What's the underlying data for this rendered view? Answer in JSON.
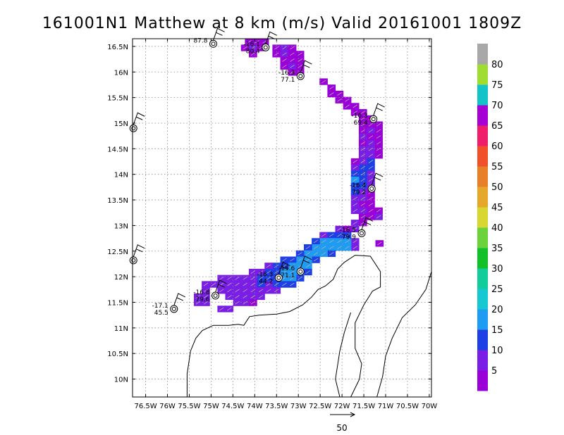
{
  "chart_data": {
    "type": "heatmap",
    "title": "161001N1 Matthew at 8 km (m/s) Valid 20161001  1809Z",
    "xlim": [
      -76.8,
      -69.95
    ],
    "ylim": [
      9.65,
      16.65
    ],
    "x_ticks": [
      "76.5W",
      "76W",
      "75.5W",
      "75W",
      "74.5W",
      "74W",
      "73.5W",
      "73W",
      "72.5W",
      "72W",
      "71.5W",
      "71W",
      "70.5W",
      "70W"
    ],
    "y_ticks": [
      "16.5N",
      "16N",
      "15.5N",
      "15N",
      "14.5N",
      "14N",
      "13.5N",
      "13N",
      "12.5N",
      "12N",
      "11.5N",
      "11N",
      "10.5N",
      "10N"
    ],
    "grid": true,
    "colorbar": {
      "placement": "right",
      "levels": [
        "5",
        "10",
        "15",
        "20",
        "25",
        "30",
        "35",
        "40",
        "45",
        "50",
        "55",
        "60",
        "65",
        "70",
        "75",
        "80"
      ],
      "colors": [
        "#9a00d8",
        "#7a1ee6",
        "#1f3fe6",
        "#1e9cf2",
        "#16c8d2",
        "#12cc9a",
        "#12c02a",
        "#6cd23c",
        "#d8d630",
        "#e6a82a",
        "#e8802a",
        "#f0502a",
        "#f01e6a",
        "#a500d4",
        "#12c3c8",
        "#a0dc32",
        "#a8a8a8"
      ]
    },
    "reference_vector": {
      "label": "50"
    },
    "stations": [
      {
        "lon": -74.95,
        "lat": 16.55,
        "labels": [
          "87.8"
        ]
      },
      {
        "lon": -73.75,
        "lat": 16.48,
        "labels": [
          "-16.1",
          "80.4"
        ]
      },
      {
        "lon": -72.95,
        "lat": 15.92,
        "labels": [
          "-16.3",
          "77.1"
        ]
      },
      {
        "lon": -71.28,
        "lat": 15.08,
        "labels": [
          "-16.3",
          "69.4"
        ]
      },
      {
        "lon": -71.32,
        "lat": 13.72,
        "labels": [
          "-16.4",
          "79.2"
        ]
      },
      {
        "lon": -71.55,
        "lat": 12.85,
        "labels": [
          "-16.5",
          "79.9"
        ]
      },
      {
        "lon": -72.95,
        "lat": 12.1,
        "labels": [
          "-15.6",
          "71.1"
        ]
      },
      {
        "lon": -73.45,
        "lat": 11.98,
        "labels": [
          "-16.3",
          "44.2"
        ]
      },
      {
        "lon": -74.9,
        "lat": 11.63,
        "labels": [
          "-16.8",
          "79.6"
        ]
      },
      {
        "lon": -75.85,
        "lat": 11.37,
        "labels": [
          "-17.1",
          "45.5"
        ]
      },
      {
        "lon": -76.78,
        "lat": 14.9,
        "labels": []
      },
      {
        "lon": -76.78,
        "lat": 12.32,
        "labels": []
      }
    ],
    "wind_field": [
      {
        "lon": -74.13,
        "lat": 16.59,
        "bin": 0
      },
      {
        "lon": -73.95,
        "lat": 16.59,
        "bin": 0
      },
      {
        "lon": -73.77,
        "lat": 16.59,
        "bin": 0
      },
      {
        "lon": -74.22,
        "lat": 16.47,
        "bin": 0
      },
      {
        "lon": -74.04,
        "lat": 16.47,
        "bin": 1
      },
      {
        "lon": -73.86,
        "lat": 16.47,
        "bin": 0
      },
      {
        "lon": -73.5,
        "lat": 16.47,
        "bin": 0
      },
      {
        "lon": -73.32,
        "lat": 16.47,
        "bin": 1
      },
      {
        "lon": -73.14,
        "lat": 16.47,
        "bin": 0
      },
      {
        "lon": -74.04,
        "lat": 16.35,
        "bin": 0
      },
      {
        "lon": -73.5,
        "lat": 16.35,
        "bin": 0
      },
      {
        "lon": -73.32,
        "lat": 16.35,
        "bin": 1
      },
      {
        "lon": -73.14,
        "lat": 16.35,
        "bin": 0
      },
      {
        "lon": -72.96,
        "lat": 16.35,
        "bin": 0
      },
      {
        "lon": -73.32,
        "lat": 16.23,
        "bin": 0
      },
      {
        "lon": -73.14,
        "lat": 16.23,
        "bin": 0
      },
      {
        "lon": -72.96,
        "lat": 16.23,
        "bin": 0
      },
      {
        "lon": -73.32,
        "lat": 16.11,
        "bin": 0
      },
      {
        "lon": -73.14,
        "lat": 16.11,
        "bin": 1
      },
      {
        "lon": -72.96,
        "lat": 16.11,
        "bin": 0
      },
      {
        "lon": -73.14,
        "lat": 15.99,
        "bin": 0
      },
      {
        "lon": -72.96,
        "lat": 15.99,
        "bin": 0
      },
      {
        "lon": -72.42,
        "lat": 15.81,
        "bin": 0
      },
      {
        "lon": -72.24,
        "lat": 15.69,
        "bin": 0
      },
      {
        "lon": -72.06,
        "lat": 15.57,
        "bin": 0
      },
      {
        "lon": -72.24,
        "lat": 15.57,
        "bin": 0
      },
      {
        "lon": -71.88,
        "lat": 15.45,
        "bin": 0
      },
      {
        "lon": -72.06,
        "lat": 15.45,
        "bin": 0
      },
      {
        "lon": -71.7,
        "lat": 15.33,
        "bin": 0
      },
      {
        "lon": -71.88,
        "lat": 15.33,
        "bin": 0
      },
      {
        "lon": -71.52,
        "lat": 15.21,
        "bin": 0
      },
      {
        "lon": -71.7,
        "lat": 15.21,
        "bin": 0
      },
      {
        "lon": -71.34,
        "lat": 15.09,
        "bin": 0
      },
      {
        "lon": -71.52,
        "lat": 15.09,
        "bin": 0
      },
      {
        "lon": -71.34,
        "lat": 14.97,
        "bin": 0
      },
      {
        "lon": -71.16,
        "lat": 14.97,
        "bin": 0
      },
      {
        "lon": -71.52,
        "lat": 14.97,
        "bin": 0
      },
      {
        "lon": -71.16,
        "lat": 14.85,
        "bin": 0
      },
      {
        "lon": -71.34,
        "lat": 14.85,
        "bin": 1
      },
      {
        "lon": -71.52,
        "lat": 14.85,
        "bin": 0
      },
      {
        "lon": -71.16,
        "lat": 14.73,
        "bin": 0
      },
      {
        "lon": -71.34,
        "lat": 14.73,
        "bin": 0
      },
      {
        "lon": -71.52,
        "lat": 14.73,
        "bin": 1
      },
      {
        "lon": -71.16,
        "lat": 14.61,
        "bin": 0
      },
      {
        "lon": -71.34,
        "lat": 14.61,
        "bin": 1
      },
      {
        "lon": -71.52,
        "lat": 14.61,
        "bin": 0
      },
      {
        "lon": -71.16,
        "lat": 14.49,
        "bin": 0
      },
      {
        "lon": -71.34,
        "lat": 14.49,
        "bin": 1
      },
      {
        "lon": -71.52,
        "lat": 14.49,
        "bin": 1
      },
      {
        "lon": -71.16,
        "lat": 14.37,
        "bin": 0
      },
      {
        "lon": -71.34,
        "lat": 14.37,
        "bin": 1
      },
      {
        "lon": -71.52,
        "lat": 14.37,
        "bin": 1
      },
      {
        "lon": -71.34,
        "lat": 14.25,
        "bin": 2
      },
      {
        "lon": -71.52,
        "lat": 14.25,
        "bin": 1
      },
      {
        "lon": -71.7,
        "lat": 14.25,
        "bin": 0
      },
      {
        "lon": -71.34,
        "lat": 14.13,
        "bin": 2
      },
      {
        "lon": -71.52,
        "lat": 14.13,
        "bin": 2
      },
      {
        "lon": -71.7,
        "lat": 14.13,
        "bin": 1
      },
      {
        "lon": -71.34,
        "lat": 14.01,
        "bin": 1
      },
      {
        "lon": -71.52,
        "lat": 14.01,
        "bin": 2
      },
      {
        "lon": -71.7,
        "lat": 14.01,
        "bin": 2
      },
      {
        "lon": -71.34,
        "lat": 13.89,
        "bin": 1
      },
      {
        "lon": -71.52,
        "lat": 13.89,
        "bin": 2
      },
      {
        "lon": -71.7,
        "lat": 13.89,
        "bin": 3
      },
      {
        "lon": -71.34,
        "lat": 13.77,
        "bin": 1
      },
      {
        "lon": -71.52,
        "lat": 13.77,
        "bin": 2
      },
      {
        "lon": -71.7,
        "lat": 13.77,
        "bin": 2
      },
      {
        "lon": -71.34,
        "lat": 13.65,
        "bin": 0
      },
      {
        "lon": -71.52,
        "lat": 13.65,
        "bin": 1
      },
      {
        "lon": -71.7,
        "lat": 13.65,
        "bin": 2
      },
      {
        "lon": -71.34,
        "lat": 13.53,
        "bin": 0
      },
      {
        "lon": -71.52,
        "lat": 13.53,
        "bin": 1
      },
      {
        "lon": -71.7,
        "lat": 13.53,
        "bin": 1
      },
      {
        "lon": -71.34,
        "lat": 13.41,
        "bin": 0
      },
      {
        "lon": -71.52,
        "lat": 13.41,
        "bin": 0
      },
      {
        "lon": -71.7,
        "lat": 13.41,
        "bin": 1
      },
      {
        "lon": -71.16,
        "lat": 13.29,
        "bin": 0
      },
      {
        "lon": -71.34,
        "lat": 13.29,
        "bin": 0
      },
      {
        "lon": -71.52,
        "lat": 13.29,
        "bin": 1
      },
      {
        "lon": -71.7,
        "lat": 13.29,
        "bin": 1
      },
      {
        "lon": -71.16,
        "lat": 13.17,
        "bin": 1
      },
      {
        "lon": -71.34,
        "lat": 13.17,
        "bin": 0
      },
      {
        "lon": -71.52,
        "lat": 13.17,
        "bin": 0
      },
      {
        "lon": -71.52,
        "lat": 13.05,
        "bin": 0
      },
      {
        "lon": -71.7,
        "lat": 13.05,
        "bin": 1
      },
      {
        "lon": -71.7,
        "lat": 12.93,
        "bin": 1
      },
      {
        "lon": -71.88,
        "lat": 12.93,
        "bin": 0
      },
      {
        "lon": -72.06,
        "lat": 12.93,
        "bin": 1
      },
      {
        "lon": -71.88,
        "lat": 12.81,
        "bin": 2
      },
      {
        "lon": -72.06,
        "lat": 12.81,
        "bin": 2
      },
      {
        "lon": -72.24,
        "lat": 12.81,
        "bin": 2
      },
      {
        "lon": -72.42,
        "lat": 12.81,
        "bin": 1
      },
      {
        "lon": -71.7,
        "lat": 12.69,
        "bin": 1
      },
      {
        "lon": -71.88,
        "lat": 12.69,
        "bin": 3
      },
      {
        "lon": -72.06,
        "lat": 12.69,
        "bin": 3
      },
      {
        "lon": -72.24,
        "lat": 12.69,
        "bin": 3
      },
      {
        "lon": -72.42,
        "lat": 12.69,
        "bin": 3
      },
      {
        "lon": -72.6,
        "lat": 12.69,
        "bin": 2
      },
      {
        "lon": -71.7,
        "lat": 12.57,
        "bin": 1
      },
      {
        "lon": -71.88,
        "lat": 12.57,
        "bin": 3
      },
      {
        "lon": -72.06,
        "lat": 12.57,
        "bin": 3
      },
      {
        "lon": -72.24,
        "lat": 12.57,
        "bin": 3
      },
      {
        "lon": -72.42,
        "lat": 12.57,
        "bin": 3
      },
      {
        "lon": -72.6,
        "lat": 12.57,
        "bin": 3
      },
      {
        "lon": -72.78,
        "lat": 12.57,
        "bin": 2
      },
      {
        "lon": -71.14,
        "lat": 12.65,
        "bin": 0
      },
      {
        "lon": -72.24,
        "lat": 12.45,
        "bin": 2
      },
      {
        "lon": -72.42,
        "lat": 12.45,
        "bin": 3
      },
      {
        "lon": -72.6,
        "lat": 12.45,
        "bin": 3
      },
      {
        "lon": -72.78,
        "lat": 12.45,
        "bin": 3
      },
      {
        "lon": -72.96,
        "lat": 12.45,
        "bin": 2
      },
      {
        "lon": -72.6,
        "lat": 12.33,
        "bin": 2
      },
      {
        "lon": -72.78,
        "lat": 12.33,
        "bin": 3
      },
      {
        "lon": -72.96,
        "lat": 12.33,
        "bin": 3
      },
      {
        "lon": -73.14,
        "lat": 12.33,
        "bin": 2
      },
      {
        "lon": -73.32,
        "lat": 12.33,
        "bin": 2
      },
      {
        "lon": -72.78,
        "lat": 12.21,
        "bin": 3
      },
      {
        "lon": -72.96,
        "lat": 12.21,
        "bin": 3
      },
      {
        "lon": -73.14,
        "lat": 12.21,
        "bin": 3
      },
      {
        "lon": -73.32,
        "lat": 12.21,
        "bin": 2
      },
      {
        "lon": -73.5,
        "lat": 12.21,
        "bin": 2
      },
      {
        "lon": -73.68,
        "lat": 12.21,
        "bin": 1
      },
      {
        "lon": -72.78,
        "lat": 12.09,
        "bin": 2
      },
      {
        "lon": -72.96,
        "lat": 12.09,
        "bin": 3
      },
      {
        "lon": -73.14,
        "lat": 12.09,
        "bin": 3
      },
      {
        "lon": -73.32,
        "lat": 12.09,
        "bin": 3
      },
      {
        "lon": -73.5,
        "lat": 12.09,
        "bin": 2
      },
      {
        "lon": -73.68,
        "lat": 12.09,
        "bin": 2
      },
      {
        "lon": -73.86,
        "lat": 12.09,
        "bin": 1
      },
      {
        "lon": -74.04,
        "lat": 12.09,
        "bin": 1
      },
      {
        "lon": -72.96,
        "lat": 11.97,
        "bin": 2
      },
      {
        "lon": -73.14,
        "lat": 11.97,
        "bin": 3
      },
      {
        "lon": -73.32,
        "lat": 11.97,
        "bin": 3
      },
      {
        "lon": -73.5,
        "lat": 11.97,
        "bin": 2
      },
      {
        "lon": -73.68,
        "lat": 11.97,
        "bin": 2
      },
      {
        "lon": -73.86,
        "lat": 11.97,
        "bin": 2
      },
      {
        "lon": -74.04,
        "lat": 11.97,
        "bin": 1
      },
      {
        "lon": -74.22,
        "lat": 11.97,
        "bin": 1
      },
      {
        "lon": -74.4,
        "lat": 11.97,
        "bin": 1
      },
      {
        "lon": -74.58,
        "lat": 11.97,
        "bin": 1
      },
      {
        "lon": -74.76,
        "lat": 11.97,
        "bin": 1
      },
      {
        "lon": -73.14,
        "lat": 11.85,
        "bin": 2
      },
      {
        "lon": -73.32,
        "lat": 11.85,
        "bin": 2
      },
      {
        "lon": -73.5,
        "lat": 11.85,
        "bin": 2
      },
      {
        "lon": -73.68,
        "lat": 11.85,
        "bin": 1
      },
      {
        "lon": -73.86,
        "lat": 11.85,
        "bin": 2
      },
      {
        "lon": -74.04,
        "lat": 11.85,
        "bin": 1
      },
      {
        "lon": -74.22,
        "lat": 11.85,
        "bin": 1
      },
      {
        "lon": -74.4,
        "lat": 11.85,
        "bin": 1
      },
      {
        "lon": -74.58,
        "lat": 11.85,
        "bin": 1
      },
      {
        "lon": -74.76,
        "lat": 11.85,
        "bin": 1
      },
      {
        "lon": -74.94,
        "lat": 11.85,
        "bin": 1
      },
      {
        "lon": -75.12,
        "lat": 11.85,
        "bin": 1
      },
      {
        "lon": -73.5,
        "lat": 11.73,
        "bin": 1
      },
      {
        "lon": -73.68,
        "lat": 11.73,
        "bin": 1
      },
      {
        "lon": -73.86,
        "lat": 11.73,
        "bin": 1
      },
      {
        "lon": -74.04,
        "lat": 11.73,
        "bin": 1
      },
      {
        "lon": -74.22,
        "lat": 11.73,
        "bin": 1
      },
      {
        "lon": -74.4,
        "lat": 11.73,
        "bin": 1
      },
      {
        "lon": -74.58,
        "lat": 11.73,
        "bin": 1
      },
      {
        "lon": -74.76,
        "lat": 11.73,
        "bin": 1
      },
      {
        "lon": -75.12,
        "lat": 11.73,
        "bin": 1
      },
      {
        "lon": -73.86,
        "lat": 11.61,
        "bin": 1
      },
      {
        "lon": -74.04,
        "lat": 11.61,
        "bin": 1
      },
      {
        "lon": -74.22,
        "lat": 11.61,
        "bin": 1
      },
      {
        "lon": -74.4,
        "lat": 11.61,
        "bin": 1
      },
      {
        "lon": -74.58,
        "lat": 11.61,
        "bin": 1
      },
      {
        "lon": -75.12,
        "lat": 11.61,
        "bin": 1
      },
      {
        "lon": -75.3,
        "lat": 11.61,
        "bin": 1
      },
      {
        "lon": -74.04,
        "lat": 11.49,
        "bin": 0
      },
      {
        "lon": -74.22,
        "lat": 11.49,
        "bin": 1
      },
      {
        "lon": -74.4,
        "lat": 11.49,
        "bin": 1
      },
      {
        "lon": -75.12,
        "lat": 11.49,
        "bin": 1
      },
      {
        "lon": -75.3,
        "lat": 11.49,
        "bin": 1
      },
      {
        "lon": -74.58,
        "lat": 11.37,
        "bin": 1
      },
      {
        "lon": -74.76,
        "lat": 11.37,
        "bin": 1
      }
    ],
    "coastline": [
      [
        [
          -75.55,
          9.65
        ],
        [
          -75.55,
          10.1
        ],
        [
          -75.47,
          10.55
        ],
        [
          -75.35,
          10.8
        ],
        [
          -75.2,
          10.95
        ],
        [
          -74.95,
          11.05
        ],
        [
          -74.6,
          11.05
        ],
        [
          -74.38,
          11.07
        ],
        [
          -74.25,
          11.05
        ],
        [
          -74.12,
          11.22
        ],
        [
          -73.9,
          11.25
        ],
        [
          -73.5,
          11.27
        ],
        [
          -73.2,
          11.32
        ],
        [
          -72.9,
          11.45
        ],
        [
          -72.7,
          11.6
        ],
        [
          -72.55,
          11.75
        ],
        [
          -72.38,
          11.82
        ],
        [
          -72.2,
          11.95
        ],
        [
          -72.1,
          12.15
        ],
        [
          -71.95,
          12.28
        ],
        [
          -71.7,
          12.42
        ],
        [
          -71.35,
          12.4
        ],
        [
          -71.12,
          12.1
        ],
        [
          -71.12,
          11.8
        ],
        [
          -71.3,
          11.72
        ],
        [
          -71.5,
          11.45
        ],
        [
          -71.7,
          11.1
        ],
        [
          -71.7,
          10.6
        ],
        [
          -71.55,
          10.3
        ],
        [
          -71.6,
          10.0
        ],
        [
          -71.8,
          9.65
        ]
      ],
      [
        [
          -72.05,
          9.65
        ],
        [
          -72.15,
          10.0
        ],
        [
          -72.05,
          10.55
        ],
        [
          -71.95,
          10.9
        ],
        [
          -71.8,
          11.3
        ]
      ],
      [
        [
          -71.2,
          9.65
        ],
        [
          -71.07,
          10.05
        ],
        [
          -71.0,
          10.45
        ],
        [
          -70.85,
          10.8
        ],
        [
          -70.62,
          11.2
        ],
        [
          -70.32,
          11.45
        ],
        [
          -70.08,
          11.75
        ],
        [
          -69.95,
          12.1
        ]
      ]
    ]
  }
}
